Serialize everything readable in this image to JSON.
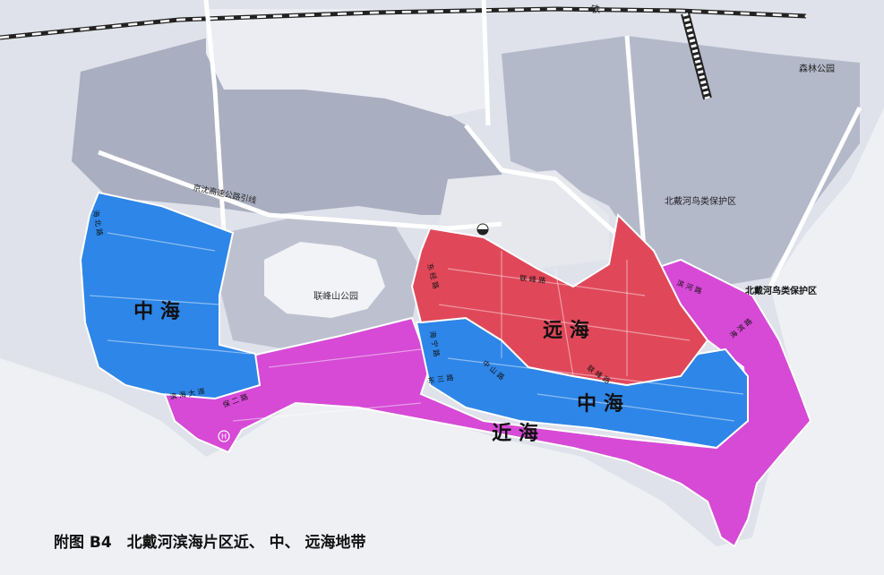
{
  "caption": "附图 B4　北戴河滨海片区近、 中、 远海地带",
  "zones": {
    "near_sea": {
      "label": "近 海",
      "color": "#d64ad6"
    },
    "mid_sea_west": {
      "label": "中 海",
      "color": "#2e86e8"
    },
    "mid_sea_east": {
      "label": "中 海",
      "color": "#2e86e8"
    },
    "far_sea": {
      "label": "远 海",
      "color": "#e0485a"
    }
  },
  "places": {
    "lianfeng_park": "联峰山公园",
    "bird_reserve_1": "北戴河鸟类保护区",
    "bird_reserve_2": "北戴河鸟类保护区",
    "forest_park": "森林公园",
    "railway": "铁",
    "expressway": "京沈高速公路引线"
  },
  "roads": {
    "binhai": "滨 海 大 道",
    "baoer": "保 二 路",
    "lianfeng": "联 峰 路",
    "lianfeng_2": "联 峰 路",
    "binhe": "滨 河 路",
    "haibei": "海 北 路",
    "dongjing": "东 经 路",
    "haining": "海 宁 路",
    "dongsan": "东 三 路",
    "zhongshan": "中 山 路",
    "haibin": "海 滨 路"
  },
  "colors": {
    "near_sea": "#d64ad6",
    "mid_sea": "#2e86e8",
    "far_sea": "#e0485a",
    "sea": "#eceef2",
    "land": "#e1e4ec",
    "blocks_dark": "#9aa0b4",
    "blocks_light": "#d7dae2"
  }
}
